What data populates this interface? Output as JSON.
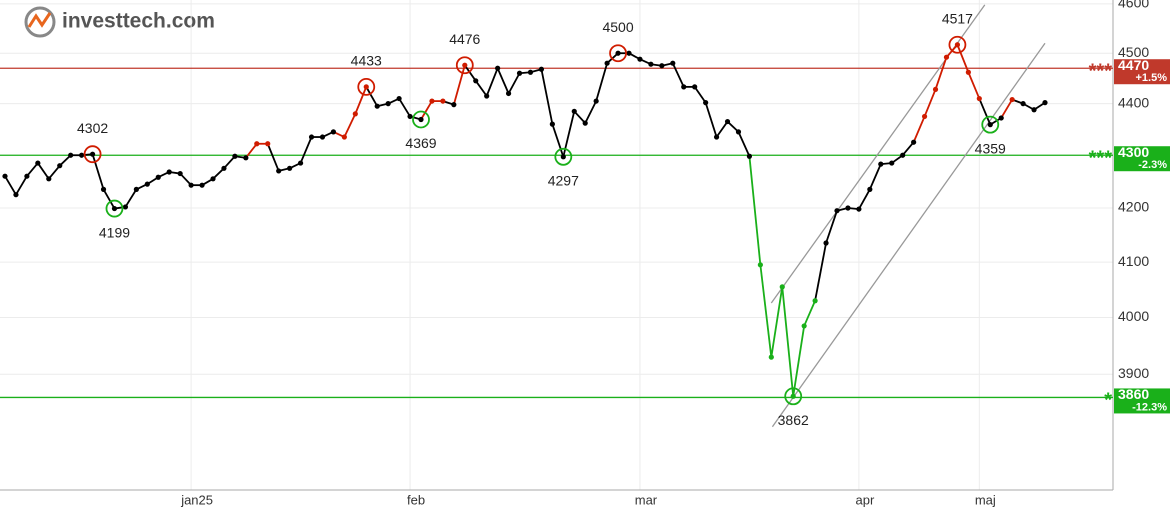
{
  "logo": "investtech.com",
  "chart_data": {
    "type": "line",
    "log_scale": true,
    "grid": true,
    "ylim": [
      3704,
      4608
    ],
    "yticks": [
      3900,
      4000,
      4100,
      4200,
      4300,
      4400,
      4500,
      4600
    ],
    "categories": [
      null,
      null,
      null,
      null,
      null,
      null,
      null,
      null,
      null,
      null,
      null,
      null,
      null,
      null,
      null,
      null,
      null,
      "jan25",
      null,
      null,
      null,
      null,
      null,
      null,
      null,
      null,
      null,
      null,
      null,
      null,
      null,
      null,
      null,
      null,
      null,
      null,
      null,
      "feb",
      null,
      null,
      null,
      null,
      null,
      null,
      null,
      null,
      null,
      null,
      null,
      null,
      null,
      null,
      null,
      null,
      null,
      null,
      null,
      null,
      "mar",
      null,
      null,
      null,
      null,
      null,
      null,
      null,
      null,
      null,
      null,
      null,
      null,
      null,
      null,
      null,
      null,
      null,
      null,
      null,
      "apr",
      null,
      null,
      null,
      null,
      null,
      null,
      null,
      null,
      null,
      null,
      "maj",
      null,
      null,
      null,
      null,
      null,
      null
    ],
    "values": [
      4260,
      4225,
      4260,
      4285,
      4255,
      4280,
      4300,
      4300,
      4302,
      4235,
      4199,
      4202,
      4235,
      4245,
      4258,
      4268,
      4265,
      4243,
      4243,
      4255,
      4275,
      4298,
      4295,
      4322,
      4322,
      4270,
      4275,
      4285,
      4335,
      4335,
      4345,
      4335,
      4380,
      4433,
      4395,
      4400,
      4410,
      4375,
      4369,
      4405,
      4405,
      4398,
      4476,
      4445,
      4415,
      4470,
      4420,
      4460,
      4462,
      4468,
      4360,
      4297,
      4385,
      4362,
      4405,
      4480,
      4500,
      4500,
      4488,
      4478,
      4475,
      4480,
      4433,
      4433,
      4402,
      4335,
      4365,
      4345,
      4298,
      4095,
      3930,
      4055,
      3862,
      3985,
      4030,
      4135,
      4195,
      4200,
      4198,
      4235,
      4283,
      4285,
      4300,
      4325,
      4375,
      4428,
      4492,
      4517,
      4462,
      4410,
      4359,
      4372,
      4408,
      4400,
      4388,
      4402
    ],
    "point_colors": [
      "#000",
      "#000",
      "#000",
      "#000",
      "#000",
      "#000",
      "#000",
      "#000",
      "#000",
      "#000",
      "#000",
      "#000",
      "#000",
      "#000",
      "#000",
      "#000",
      "#000",
      "#000",
      "#000",
      "#000",
      "#000",
      "#000",
      "#000",
      "#d01c00",
      "#d01c00",
      "#000",
      "#000",
      "#000",
      "#000",
      "#000",
      "#000",
      "#d01c00",
      "#d01c00",
      "#d01c00",
      "#000",
      "#000",
      "#000",
      "#000",
      "#000",
      "#d01c00",
      "#d01c00",
      "#000",
      "#d01c00",
      "#000",
      "#000",
      "#000",
      "#000",
      "#000",
      "#000",
      "#000",
      "#000",
      "#000",
      "#000",
      "#000",
      "#000",
      "#000",
      "#000",
      "#000",
      "#000",
      "#000",
      "#000",
      "#000",
      "#000",
      "#000",
      "#000",
      "#000",
      "#000",
      "#000",
      "#000",
      "#1ab01a",
      "#1ab01a",
      "#1ab01a",
      "#1ab01a",
      "#1ab01a",
      "#1ab01a",
      "#000",
      "#000",
      "#000",
      "#000",
      "#000",
      "#000",
      "#000",
      "#000",
      "#000",
      "#d01c00",
      "#d01c00",
      "#d01c00",
      "#d01c00",
      "#d01c00",
      "#d01c00",
      "#000",
      "#000",
      "#d01c00",
      "#000",
      "#000",
      "#000"
    ],
    "annotations": [
      {
        "index": 8,
        "value": 4302,
        "kind": "top",
        "color": "#d01c00"
      },
      {
        "index": 10,
        "value": 4199,
        "kind": "bottom",
        "color": "#1ab01a"
      },
      {
        "index": 33,
        "value": 4433,
        "kind": "top",
        "color": "#d01c00"
      },
      {
        "index": 38,
        "value": 4369,
        "kind": "bottom",
        "color": "#1ab01a"
      },
      {
        "index": 42,
        "value": 4476,
        "kind": "top",
        "color": "#d01c00"
      },
      {
        "index": 51,
        "value": 4297,
        "kind": "bottom",
        "color": "#1ab01a"
      },
      {
        "index": 56,
        "value": 4500,
        "kind": "top",
        "color": "#d01c00"
      },
      {
        "index": 72,
        "value": 3862,
        "kind": "bottom",
        "color": "#1ab01a"
      },
      {
        "index": 87,
        "value": 4517,
        "kind": "top",
        "color": "#d01c00"
      },
      {
        "index": 90,
        "value": 4359,
        "kind": "bottom",
        "color": "#1ab01a"
      }
    ],
    "levels": [
      {
        "value": 4470,
        "change": "+1.5%",
        "marker": "***",
        "color": "#c0392b"
      },
      {
        "value": 4300,
        "change": "-2.3%",
        "marker": "***",
        "color": "#1ab01a"
      },
      {
        "value": 3860,
        "change": "-12.3%",
        "marker": "*",
        "color": "#1ab01a"
      }
    ],
    "channel": [
      {
        "x": [
          70.0,
          89.5
        ],
        "y": [
          4026,
          4598
        ]
      },
      {
        "x": [
          70.1,
          95.0
        ],
        "y": [
          3810,
          4520
        ]
      }
    ]
  }
}
